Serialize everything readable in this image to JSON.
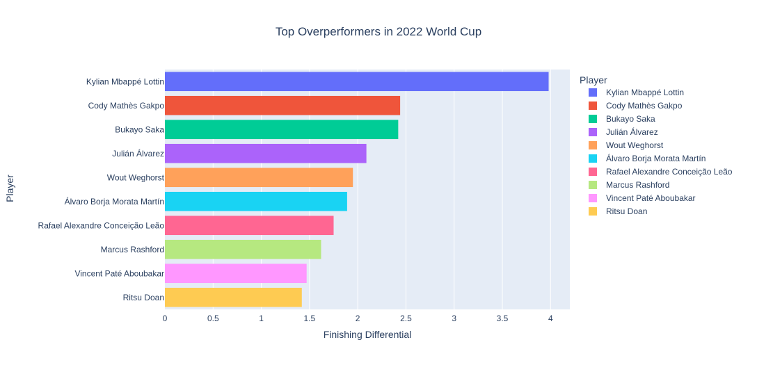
{
  "chart_data": {
    "type": "bar",
    "orientation": "horizontal",
    "title": "Top Overperformers in 2022 World Cup",
    "xlabel": "Finishing Differential",
    "ylabel": "Player",
    "xlim": [
      0,
      4.2
    ],
    "xticks": [
      0,
      0.5,
      1,
      1.5,
      2,
      2.5,
      3,
      3.5,
      4
    ],
    "xtick_labels": [
      "0",
      "0.5",
      "1",
      "1.5",
      "2",
      "2.5",
      "3",
      "3.5",
      "4"
    ],
    "grid": true,
    "legend": {
      "title": "Player",
      "placement": "right"
    },
    "categories": [
      "Kylian Mbappé Lottin",
      "Cody Mathès Gakpo",
      "Bukayo Saka",
      "Julián Álvarez",
      "Wout Weghorst",
      "Álvaro Borja Morata Martín",
      "Rafael Alexandre Conceição Leão",
      "Marcus Rashford",
      "Vincent Paté Aboubakar",
      "Ritsu Doan"
    ],
    "values": [
      3.98,
      2.44,
      2.42,
      2.09,
      1.95,
      1.89,
      1.75,
      1.62,
      1.47,
      1.42
    ],
    "colors": [
      "#636efa",
      "#EF553B",
      "#00cc96",
      "#ab63fa",
      "#FFA15A",
      "#19d3f3",
      "#FF6692",
      "#B6E880",
      "#FF97FF",
      "#FECB52"
    ]
  }
}
